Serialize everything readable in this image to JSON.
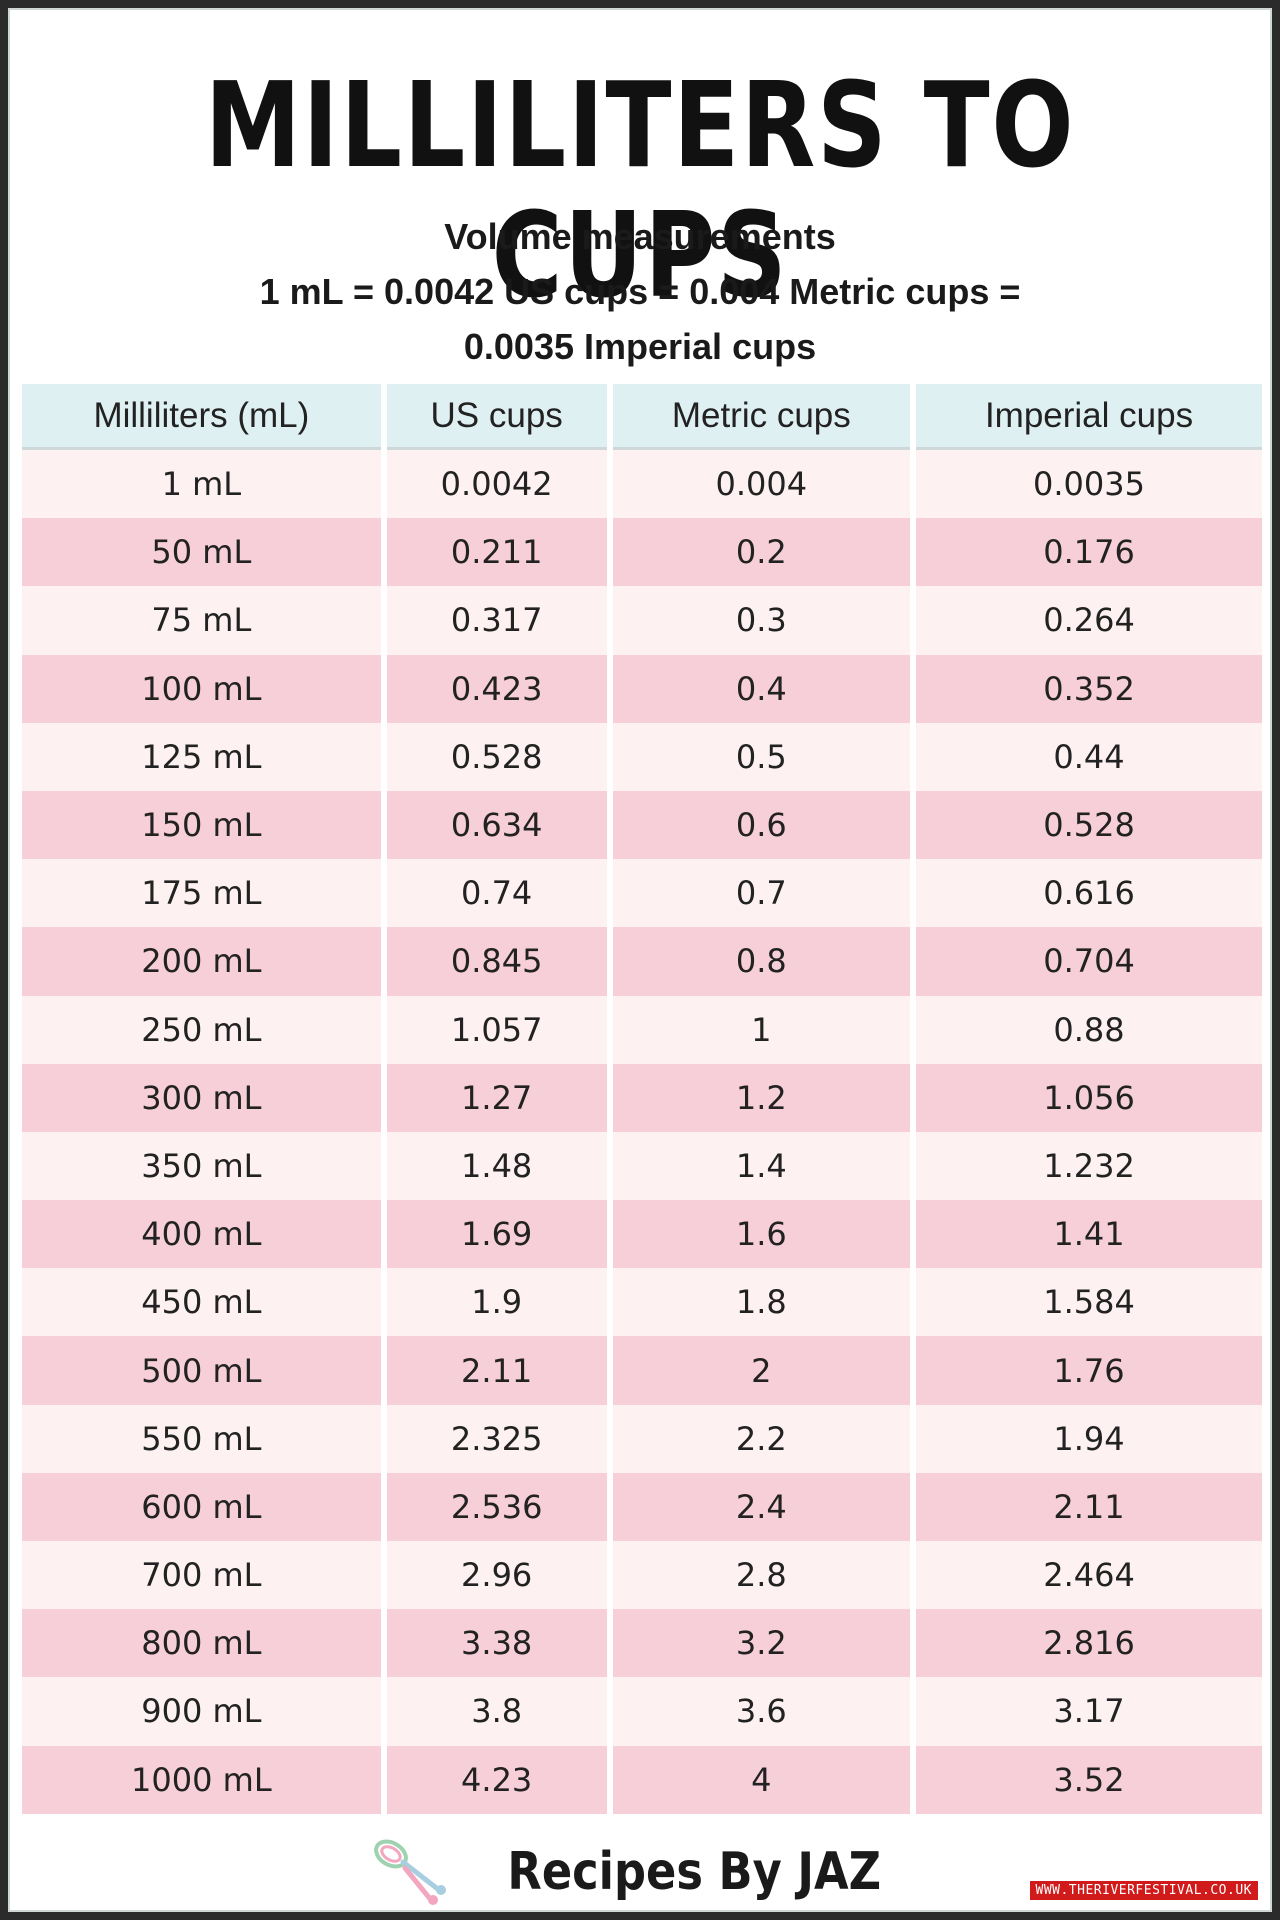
{
  "title": "MILLILITERS TO CUPS",
  "subtitle": {
    "line1": "Volume measurements",
    "line2": "1 mL = 0.0042 US cups = 0.004 Metric cups =",
    "line3": "0.0035 Imperial cups"
  },
  "table": {
    "headers": [
      "Milliliters (mL)",
      "US cups",
      "Metric cups",
      "Imperial cups"
    ],
    "rows": [
      [
        "1 mL",
        "0.0042",
        "0.004",
        "0.0035"
      ],
      [
        "50 mL",
        "0.211",
        "0.2",
        "0.176"
      ],
      [
        "75 mL",
        "0.317",
        "0.3",
        "0.264"
      ],
      [
        "100 mL",
        "0.423",
        "0.4",
        "0.352"
      ],
      [
        "125 mL",
        "0.528",
        "0.5",
        "0.44"
      ],
      [
        "150 mL",
        "0.634",
        "0.6",
        "0.528"
      ],
      [
        "175 mL",
        "0.74",
        "0.7",
        "0.616"
      ],
      [
        "200 mL",
        "0.845",
        "0.8",
        "0.704"
      ],
      [
        "250 mL",
        "1.057",
        "1",
        "0.88"
      ],
      [
        "300 mL",
        "1.27",
        "1.2",
        "1.056"
      ],
      [
        "350 mL",
        "1.48",
        "1.4",
        "1.232"
      ],
      [
        "400 mL",
        "1.69",
        "1.6",
        "1.41"
      ],
      [
        "450 mL",
        "1.9",
        "1.8",
        "1.584"
      ],
      [
        "500 mL",
        "2.11",
        "2",
        "1.76"
      ],
      [
        "550 mL",
        "2.325",
        "2.2",
        "1.94"
      ],
      [
        "600 mL",
        "2.536",
        "2.4",
        "2.11"
      ],
      [
        "700 mL",
        "2.96",
        "2.8",
        "2.464"
      ],
      [
        "800 mL",
        "3.38",
        "3.2",
        "2.816"
      ],
      [
        "900 mL",
        "3.8",
        "3.6",
        "3.17"
      ],
      [
        "1000 mL",
        "4.23",
        "4",
        "3.52"
      ]
    ]
  },
  "brand": {
    "name": "Recipes By JAZ",
    "icon": "whisk-icon"
  },
  "watermark": "WWW.THERIVERFESTIVAL.CO.UK",
  "colors": {
    "header_bg": "#dff0f2",
    "row_light": "#fdf1f2",
    "row_pink": "#f7cfd9",
    "watermark_bg": "#d11b1b"
  }
}
